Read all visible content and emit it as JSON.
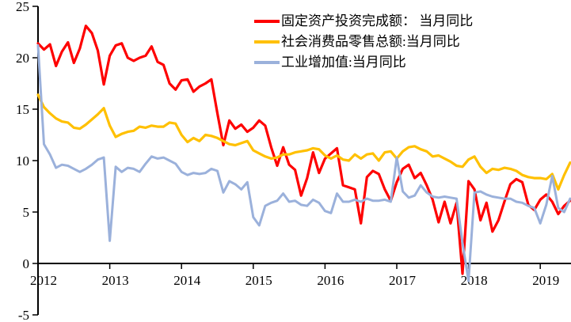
{
  "chart_data": {
    "type": "line",
    "title": "",
    "grid": false,
    "legend_position": "top-center-inside",
    "background_color": "#ffffff",
    "axis_color": "#000000",
    "x_start": "2012-01",
    "x_end": "2019-06",
    "x_interval": "month",
    "x_tick_labels": [
      "2012",
      "2013",
      "2014",
      "2015",
      "2016",
      "2017",
      "2018",
      "2019"
    ],
    "y_ticks": [
      25,
      20,
      15,
      10,
      5,
      0,
      -5
    ],
    "ylim": [
      -5,
      25
    ],
    "series": [
      {
        "name": "固定资产投资完成额： 当月同比",
        "color": "#FE0000",
        "stroke_width": 3.2,
        "values": [
          21.4,
          20.8,
          21.3,
          19.2,
          20.6,
          21.5,
          19.5,
          20.9,
          23.1,
          22.4,
          20.7,
          17.4,
          20.2,
          21.2,
          21.4,
          20.0,
          19.7,
          20.0,
          20.2,
          21.1,
          19.6,
          19.3,
          17.5,
          16.9,
          17.8,
          17.9,
          16.7,
          17.2,
          17.5,
          17.9,
          14.6,
          11.5,
          13.9,
          13.1,
          13.5,
          12.8,
          13.2,
          13.9,
          13.4,
          11.3,
          9.5,
          11.3,
          9.6,
          9.1,
          6.6,
          8.3,
          10.8,
          8.8,
          10.2,
          10.7,
          11.2,
          7.6,
          7.4,
          7.2,
          3.9,
          8.4,
          9.0,
          8.7,
          7.2,
          6.1,
          7.9,
          9.2,
          9.6,
          8.3,
          8.8,
          7.6,
          6.2,
          4.0,
          6.0,
          3.9,
          5.9,
          -1.0,
          8.0,
          7.2,
          4.2,
          5.9,
          3.1,
          4.2,
          6.0,
          7.7,
          8.2,
          7.9,
          5.7,
          5.2,
          6.2,
          6.7,
          6.0,
          4.8,
          5.6,
          6.1
        ]
      },
      {
        "name": "社会消费品零售总额:当月同比",
        "color": "#FFC000",
        "stroke_width": 3.2,
        "values": [
          16.4,
          15.2,
          14.6,
          14.1,
          13.8,
          13.7,
          13.2,
          13.1,
          13.5,
          14.0,
          14.5,
          15.1,
          13.4,
          12.3,
          12.6,
          12.8,
          12.9,
          13.3,
          13.2,
          13.4,
          13.3,
          13.3,
          13.7,
          13.6,
          12.5,
          11.8,
          12.2,
          11.9,
          12.5,
          12.4,
          12.2,
          11.9,
          11.6,
          11.5,
          11.7,
          11.9,
          11.0,
          10.7,
          10.4,
          10.2,
          10.3,
          10.6,
          10.6,
          10.8,
          10.9,
          11.0,
          11.2,
          11.1,
          10.5,
          10.2,
          10.5,
          10.1,
          10.0,
          10.6,
          10.2,
          10.6,
          10.7,
          10.0,
          10.8,
          10.9,
          10.2,
          10.9,
          11.3,
          11.4,
          11.1,
          10.9,
          10.4,
          10.5,
          10.2,
          9.9,
          9.5,
          9.4,
          10.1,
          10.4,
          9.4,
          8.8,
          9.2,
          9.1,
          9.3,
          9.2,
          9.0,
          8.6,
          8.4,
          8.3,
          8.3,
          8.2,
          8.7,
          7.2,
          8.6,
          9.8
        ]
      },
      {
        "name": "工业增加值:当月同比",
        "color": "#9BB1DB",
        "stroke_width": 3,
        "values": [
          21.2,
          11.6,
          10.6,
          9.3,
          9.6,
          9.5,
          9.2,
          8.9,
          9.2,
          9.6,
          10.1,
          10.3,
          2.2,
          9.4,
          8.9,
          9.3,
          9.2,
          8.9,
          9.7,
          10.4,
          10.2,
          10.3,
          10.0,
          9.7,
          8.9,
          8.6,
          8.8,
          8.7,
          8.8,
          9.2,
          9.0,
          6.9,
          8.0,
          7.7,
          7.2,
          7.9,
          4.5,
          3.7,
          5.6,
          5.9,
          6.1,
          6.8,
          6.0,
          6.1,
          5.7,
          5.6,
          6.2,
          5.9,
          5.1,
          4.9,
          6.8,
          6.0,
          6.0,
          6.2,
          6.0,
          6.3,
          6.1,
          6.1,
          6.2,
          6.0,
          10.3,
          7.0,
          6.4,
          6.6,
          7.6,
          6.9,
          6.5,
          6.4,
          6.5,
          6.4,
          6.3,
          2.0,
          -1.7,
          6.9,
          7.0,
          6.7,
          6.5,
          6.4,
          6.3,
          6.3,
          6.0,
          5.9,
          5.6,
          5.4,
          3.9,
          5.7,
          8.5,
          5.4,
          5.0,
          6.3
        ]
      }
    ]
  }
}
